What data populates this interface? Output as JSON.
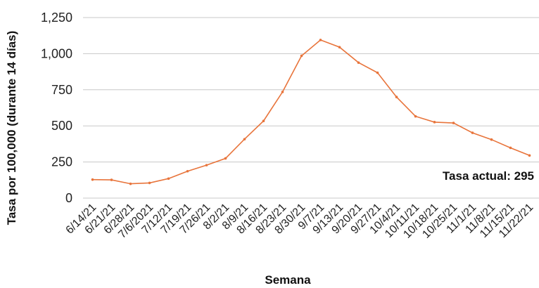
{
  "chart_data": {
    "type": "line",
    "xlabel": "Semana",
    "ylabel": "Tasa por 100,000 (durante 14 días)",
    "ylim": [
      0,
      1250
    ],
    "yticks": [
      "0",
      "250",
      "500",
      "750",
      "1,000",
      "1,250"
    ],
    "ytick_values": [
      0,
      250,
      500,
      750,
      1000,
      1250
    ],
    "grid": true,
    "categories": [
      "6/14/21",
      "6/21/21",
      "6/28/21",
      "7/6/2021",
      "7/12/21",
      "7/19/21",
      "7/26/21",
      "8/2/21",
      "8/9/21",
      "8/16/21",
      "8/23/21",
      "8/30/21",
      "9/7/21",
      "9/13/21",
      "9/20/21",
      "9/27/21",
      "10/4/21",
      "10/11/21",
      "10/18/21",
      "10/25/21",
      "11/1/21",
      "11/8/21",
      "11/15/21",
      "11/22/21"
    ],
    "series": [
      {
        "color": "#e8743b",
        "values": [
          128,
          126,
          99,
          105,
          135,
          186,
          228,
          275,
          408,
          534,
          735,
          985,
          1095,
          1045,
          938,
          868,
          700,
          566,
          526,
          520,
          452,
          405,
          348,
          295
        ]
      }
    ],
    "annotations": [
      {
        "text": "Tasa actual: 295"
      }
    ]
  }
}
